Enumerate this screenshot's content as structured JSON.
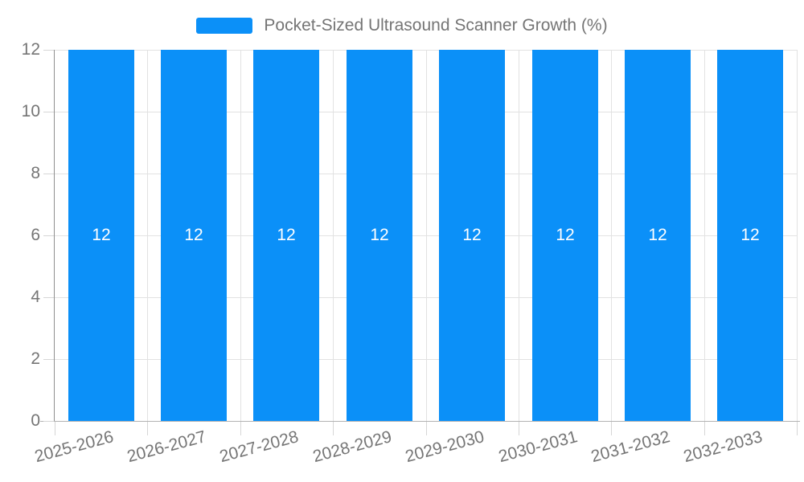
{
  "legend": {
    "label": "Pocket-Sized Ultrasound Scanner Growth (%)"
  },
  "chart_data": {
    "type": "bar",
    "title": "Pocket-Sized Ultrasound Scanner Growth (%)",
    "categories": [
      "2025-2026",
      "2026-2027",
      "2027-2028",
      "2028-2029",
      "2029-2030",
      "2030-2031",
      "2031-2032",
      "2032-2033"
    ],
    "series": [
      {
        "name": "Pocket-Sized Ultrasound Scanner Growth (%)",
        "values": [
          12,
          12,
          12,
          12,
          12,
          12,
          12,
          12
        ]
      }
    ],
    "xlabel": "",
    "ylabel": "",
    "ylim": [
      0,
      12
    ],
    "yticks": [
      0,
      2,
      4,
      6,
      8,
      10,
      12
    ],
    "grid": true,
    "legend_position": "top-center",
    "bar_value_labels_inside": true,
    "x_label_rotation_deg": -15
  },
  "colors": {
    "bar": "#0b90f8",
    "bar_label": "#ffffff",
    "axis_text": "#757575",
    "legend_text": "#757575",
    "grid_line": "#e2e2e2",
    "y_axis_line": "#8f8f8f",
    "x_axis_line": "#b3b3b3",
    "tick": "#d6d6d6",
    "background": "#ffffff"
  }
}
